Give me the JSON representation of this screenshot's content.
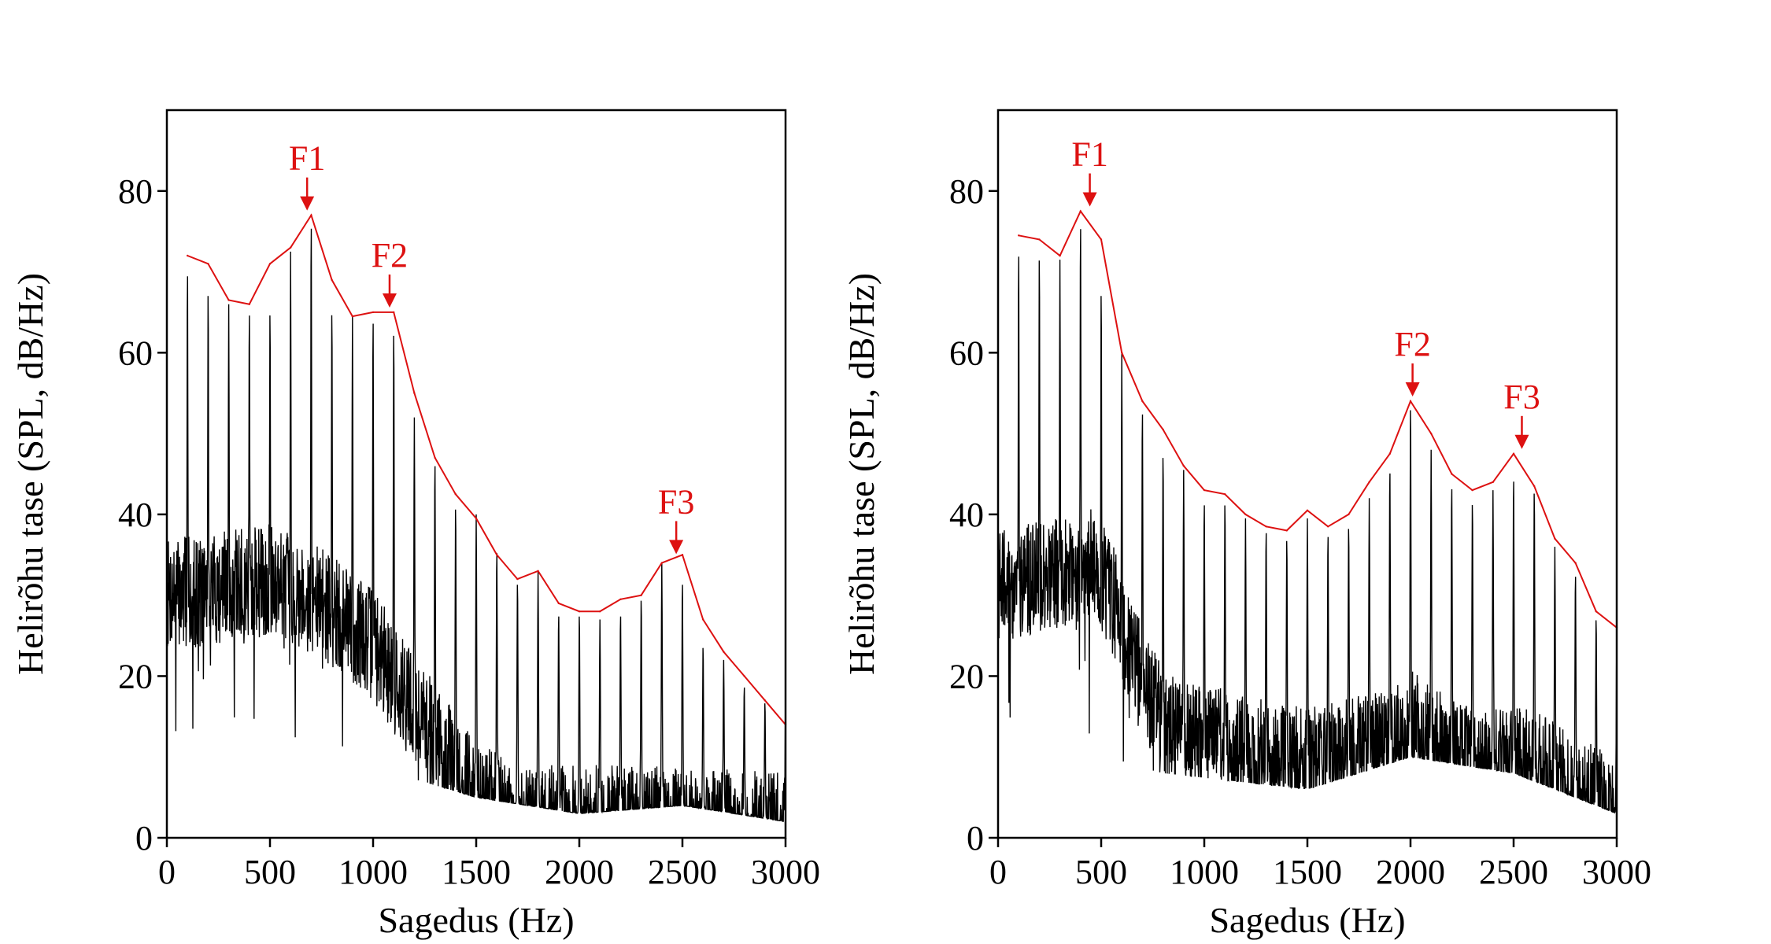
{
  "colors": {
    "spectrum": "#000000",
    "envelope": "#dd1111",
    "formant": "#dd1111",
    "axis": "#000000"
  },
  "chart_data": [
    {
      "type": "line",
      "xlabel": "Sagedus (Hz)",
      "ylabel": "Helirõhu tase (SPL, dB/Hz)",
      "xlim": [
        0,
        3000
      ],
      "ylim": [
        0,
        90
      ],
      "x_ticks": [
        "0",
        "500",
        "1000",
        "1500",
        "2000",
        "2500",
        "3000"
      ],
      "y_ticks": [
        "0",
        "20",
        "40",
        "60",
        "80"
      ],
      "grid": false,
      "spectrum": {
        "f0": 100,
        "harmonic_peaks": [
          71,
          68.5,
          66,
          66,
          66,
          72.5,
          77,
          66,
          64.5,
          65,
          63.5,
          52,
          47,
          41.5,
          40,
          36,
          32,
          33,
          28,
          28,
          27,
          28,
          30,
          34,
          32,
          24,
          22,
          19,
          17,
          16
        ],
        "noise_floor": [
          [
            0,
            30
          ],
          [
            300,
            31
          ],
          [
            550,
            32
          ],
          [
            800,
            28
          ],
          [
            1000,
            24
          ],
          [
            1150,
            18
          ],
          [
            1300,
            12
          ],
          [
            1500,
            5
          ],
          [
            1700,
            2
          ],
          [
            2000,
            2
          ],
          [
            2400,
            2
          ],
          [
            3000,
            1
          ]
        ],
        "harmonic_pedestal": [
          [
            0,
            10
          ],
          [
            800,
            12
          ],
          [
            1100,
            8
          ],
          [
            1500,
            5
          ],
          [
            2000,
            3
          ],
          [
            2500,
            4
          ],
          [
            3000,
            2
          ]
        ]
      },
      "envelope": {
        "x": [
          100,
          200,
          300,
          400,
          500,
          600,
          700,
          800,
          900,
          1000,
          1100,
          1200,
          1300,
          1400,
          1500,
          1600,
          1700,
          1800,
          1900,
          2000,
          2100,
          2200,
          2300,
          2400,
          2500,
          2600,
          2700,
          2800,
          2900,
          3000
        ],
        "y": [
          72,
          71,
          66.5,
          66,
          71,
          73,
          77,
          69,
          64.5,
          65,
          65,
          55,
          47,
          42.5,
          39.5,
          35,
          32,
          33,
          29,
          28,
          28,
          29.5,
          30,
          34,
          35,
          27,
          23,
          20,
          17,
          14
        ]
      },
      "formants": [
        {
          "label": "F1",
          "x": 680,
          "y": 77
        },
        {
          "label": "F2",
          "x": 1080,
          "y": 65
        },
        {
          "label": "F3",
          "x": 2470,
          "y": 34.5
        }
      ]
    },
    {
      "type": "line",
      "xlabel": "Sagedus (Hz)",
      "ylabel": "Helirõhu tase (SPL, dB/Hz)",
      "xlim": [
        0,
        3000
      ],
      "ylim": [
        0,
        90
      ],
      "x_ticks": [
        "0",
        "500",
        "1000",
        "1500",
        "2000",
        "2500",
        "3000"
      ],
      "y_ticks": [
        "0",
        "20",
        "40",
        "60",
        "80"
      ],
      "grid": false,
      "spectrum": {
        "f0": 100,
        "harmonic_peaks": [
          73.5,
          73,
          71.5,
          77,
          68.5,
          60,
          53.5,
          48,
          45.5,
          42,
          42,
          39.5,
          38.5,
          37.5,
          39.5,
          38,
          39,
          42,
          46,
          54,
          48,
          44,
          42,
          43,
          45,
          43.5,
          36,
          33,
          27.5,
          25
        ],
        "noise_floor": [
          [
            0,
            31
          ],
          [
            300,
            33
          ],
          [
            450,
            34
          ],
          [
            550,
            30
          ],
          [
            650,
            22
          ],
          [
            800,
            14
          ],
          [
            1000,
            12
          ],
          [
            1500,
            9
          ],
          [
            1800,
            11
          ],
          [
            2000,
            14
          ],
          [
            2300,
            9
          ],
          [
            2500,
            10
          ],
          [
            2800,
            6
          ],
          [
            3000,
            3
          ]
        ],
        "harmonic_pedestal": [
          [
            0,
            10
          ],
          [
            500,
            10
          ],
          [
            800,
            8
          ],
          [
            1500,
            6
          ],
          [
            2000,
            10
          ],
          [
            2500,
            8
          ],
          [
            3000,
            3
          ]
        ]
      },
      "envelope": {
        "x": [
          100,
          200,
          300,
          400,
          500,
          600,
          700,
          800,
          900,
          1000,
          1100,
          1200,
          1300,
          1400,
          1500,
          1600,
          1700,
          1800,
          1900,
          2000,
          2100,
          2200,
          2300,
          2400,
          2500,
          2600,
          2700,
          2800,
          2900,
          3000
        ],
        "y": [
          74.5,
          74,
          72,
          77.5,
          74,
          60,
          54,
          50.5,
          46,
          43,
          42.5,
          40,
          38.5,
          38,
          40.5,
          38.5,
          40,
          44,
          47.5,
          54,
          50,
          45,
          43,
          44,
          47.5,
          43.5,
          37,
          34,
          28,
          26
        ]
      },
      "formants": [
        {
          "label": "F1",
          "x": 445,
          "y": 77.5
        },
        {
          "label": "F2",
          "x": 2010,
          "y": 54
        },
        {
          "label": "F3",
          "x": 2540,
          "y": 47.5
        }
      ]
    }
  ]
}
